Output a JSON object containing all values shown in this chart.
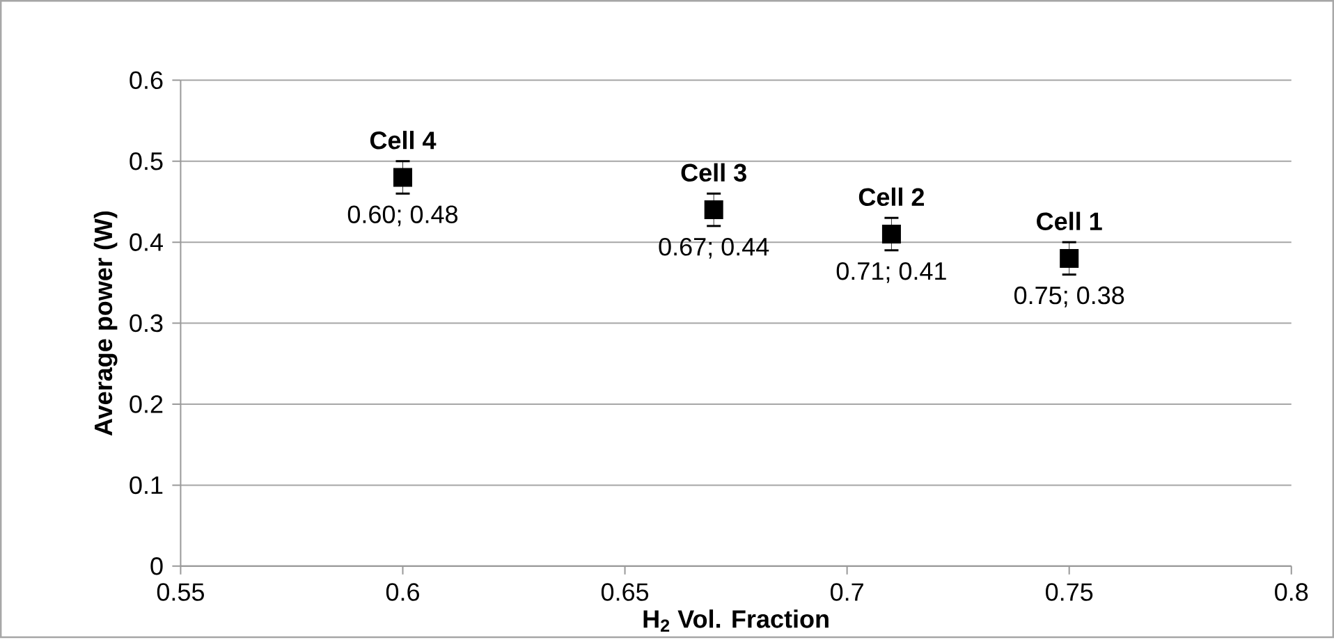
{
  "chart_data": {
    "type": "scatter",
    "xlabel": "H$_{2}$ Vol. Fraction",
    "ylabel": "Average power (W)",
    "x": [
      0.6,
      0.67,
      0.71,
      0.75
    ],
    "values": [
      0.48,
      0.44,
      0.41,
      0.38
    ],
    "errors": [
      0.02,
      0.02,
      0.02,
      0.02
    ],
    "value_labels": [
      "0.60; 0.48",
      "0.67; 0.44",
      "0.71; 0.41",
      "0.75; 0.38"
    ],
    "color": "#000000",
    "marker": "square",
    "grid": "y",
    "xlim": [
      0.55,
      0.8
    ],
    "xticks": [
      0.55,
      0.6,
      0.65,
      0.7,
      0.75,
      0.8
    ],
    "ylim": [
      0,
      0.6
    ],
    "yticks": [
      0,
      0.1,
      0.2,
      0.3,
      0.4,
      0.5,
      0.6
    ],
    "annotations": [
      {
        "text": "Cell 4",
        "x": 0.6,
        "y": 0.48
      },
      {
        "text": "Cell 3",
        "x": 0.67,
        "y": 0.44
      },
      {
        "text": "Cell 2",
        "x": 0.71,
        "y": 0.41
      },
      {
        "text": "Cell 1",
        "x": 0.75,
        "y": 0.38
      }
    ]
  }
}
